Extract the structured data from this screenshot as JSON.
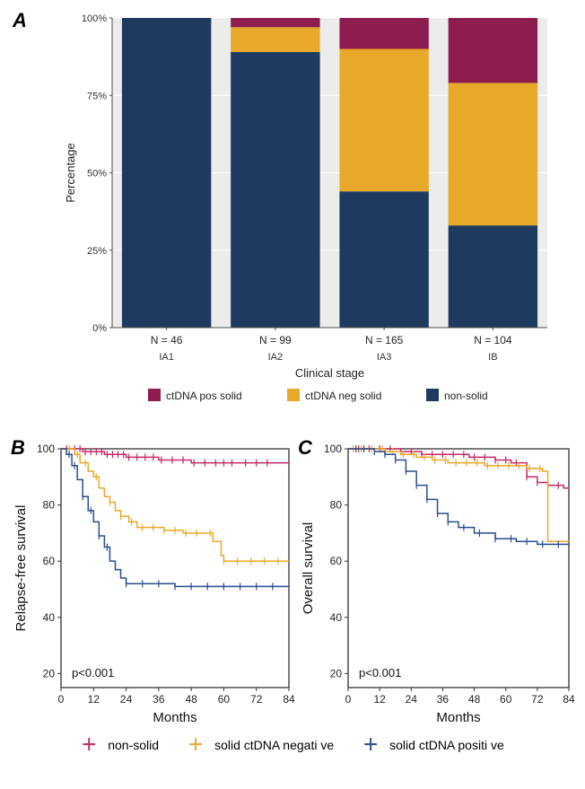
{
  "panels": {
    "A": "A",
    "B": "B",
    "C": "C"
  },
  "barChart": {
    "type": "stacked-bar",
    "xlabel": "Clinical stage",
    "ylabel": "Percentage",
    "yTicks": [
      0,
      25,
      50,
      75,
      100
    ],
    "yTickFormat": "percent",
    "categories": [
      "IA1",
      "IA2",
      "IA3",
      "IB"
    ],
    "nLabels": [
      "N = 46",
      "N = 99",
      "N = 165",
      "N = 104"
    ],
    "series": [
      {
        "key": "non_solid",
        "label": "non-solid",
        "color": "#1f3a5f"
      },
      {
        "key": "ctdna_neg_solid",
        "label": "ctDNA neg solid",
        "color": "#e8a92b"
      },
      {
        "key": "ctdna_pos_solid",
        "label": "ctDNA pos solid",
        "color": "#8e1d4f"
      }
    ],
    "legendOrder": [
      "ctdna_pos_solid",
      "ctdna_neg_solid",
      "non_solid"
    ],
    "data": {
      "IA1": {
        "non_solid": 100,
        "ctdna_neg_solid": 0,
        "ctdna_pos_solid": 0
      },
      "IA2": {
        "non_solid": 89,
        "ctdna_neg_solid": 8,
        "ctdna_pos_solid": 3
      },
      "IA3": {
        "non_solid": 44,
        "ctdna_neg_solid": 46,
        "ctdna_pos_solid": 10
      },
      "IB": {
        "non_solid": 33,
        "ctdna_neg_solid": 46,
        "ctdna_pos_solid": 21
      }
    },
    "barWidth": 0.82,
    "background": "#ececec",
    "gridColor": "#ffffff",
    "axisColor": "#4d4d4d",
    "labelFont": 13,
    "tickFont": 11,
    "nFont": 12
  },
  "kmLegend": {
    "items": [
      {
        "label": "non-solid",
        "color": "#c12a6b"
      },
      {
        "label": "solid ctDNA negati ve",
        "color": "#e8a92b"
      },
      {
        "label": "solid ctDNA positi ve",
        "color": "#2a4d8f"
      }
    ],
    "glyph": "＋"
  },
  "panelB": {
    "type": "kaplan-meier",
    "ylabel": "Relapse-free survival",
    "xlabel": "Months",
    "pText": "p<0.001",
    "xTicks": [
      0,
      12,
      24,
      36,
      48,
      60,
      72,
      84
    ],
    "yTicks": [
      20,
      40,
      60,
      80,
      100
    ],
    "ylim": [
      15,
      100
    ],
    "xlim": [
      0,
      84
    ],
    "background": "#ffffff",
    "axisColor": "#333333",
    "labelFont": 15,
    "tickFont": 12,
    "lineWidth": 1.5,
    "curves": [
      {
        "color": "#c12a6b",
        "steps": [
          [
            0,
            100
          ],
          [
            4,
            100
          ],
          [
            8,
            99
          ],
          [
            16,
            98
          ],
          [
            24,
            97
          ],
          [
            36,
            96
          ],
          [
            48,
            95
          ],
          [
            62,
            95
          ],
          [
            80,
            95
          ],
          [
            84,
            95
          ]
        ],
        "ticks": [
          2,
          5,
          7,
          9,
          11,
          13,
          15,
          17,
          19,
          21,
          23,
          25,
          28,
          31,
          34,
          37,
          41,
          45,
          49,
          53,
          57,
          60,
          63,
          68,
          72,
          76
        ]
      },
      {
        "color": "#e8a92b",
        "steps": [
          [
            0,
            100
          ],
          [
            3,
            100
          ],
          [
            5,
            98
          ],
          [
            7,
            95
          ],
          [
            10,
            92
          ],
          [
            12,
            90
          ],
          [
            14,
            86
          ],
          [
            16,
            83
          ],
          [
            18,
            81
          ],
          [
            20,
            78
          ],
          [
            22,
            76
          ],
          [
            25,
            74
          ],
          [
            28,
            72
          ],
          [
            33,
            72
          ],
          [
            38,
            71
          ],
          [
            45,
            70
          ],
          [
            52,
            70
          ],
          [
            56,
            67
          ],
          [
            59,
            62
          ],
          [
            60,
            60
          ],
          [
            70,
            60
          ],
          [
            80,
            60
          ],
          [
            84,
            60
          ]
        ],
        "ticks": [
          3,
          6,
          9,
          13,
          18,
          22,
          26,
          30,
          34,
          38,
          42,
          46,
          50,
          55,
          60,
          65,
          70,
          75,
          80
        ]
      },
      {
        "color": "#2a4d8f",
        "steps": [
          [
            0,
            100
          ],
          [
            2,
            98
          ],
          [
            4,
            94
          ],
          [
            6,
            89
          ],
          [
            8,
            83
          ],
          [
            10,
            78
          ],
          [
            12,
            74
          ],
          [
            14,
            69
          ],
          [
            16,
            65
          ],
          [
            18,
            60
          ],
          [
            20,
            57
          ],
          [
            22,
            54
          ],
          [
            24,
            52
          ],
          [
            28,
            52
          ],
          [
            34,
            52
          ],
          [
            42,
            51
          ],
          [
            52,
            51
          ],
          [
            62,
            51
          ],
          [
            72,
            51
          ],
          [
            84,
            51
          ]
        ],
        "ticks": [
          3,
          5,
          8,
          11,
          14,
          17,
          24,
          30,
          36,
          42,
          48,
          54,
          60,
          66,
          72,
          78
        ]
      }
    ]
  },
  "panelC": {
    "type": "kaplan-meier",
    "ylabel": "Overall survival",
    "xlabel": "Months",
    "pText": "p<0.001",
    "xTicks": [
      0,
      12,
      24,
      36,
      48,
      60,
      72,
      84
    ],
    "yTicks": [
      20,
      40,
      60,
      80,
      100
    ],
    "ylim": [
      15,
      100
    ],
    "xlim": [
      0,
      84
    ],
    "background": "#ffffff",
    "axisColor": "#333333",
    "labelFont": 15,
    "tickFont": 12,
    "lineWidth": 1.5,
    "curves": [
      {
        "color": "#c12a6b",
        "steps": [
          [
            0,
            100
          ],
          [
            10,
            100
          ],
          [
            20,
            99
          ],
          [
            28,
            98
          ],
          [
            36,
            98
          ],
          [
            46,
            97
          ],
          [
            56,
            96
          ],
          [
            62,
            95
          ],
          [
            68,
            90
          ],
          [
            72,
            88
          ],
          [
            76,
            87
          ],
          [
            82,
            86
          ],
          [
            84,
            86
          ]
        ],
        "ticks": [
          4,
          8,
          12,
          16,
          20,
          24,
          28,
          32,
          36,
          40,
          44,
          48,
          52,
          56,
          60,
          64,
          68,
          72,
          76,
          80
        ]
      },
      {
        "color": "#e8a92b",
        "steps": [
          [
            0,
            100
          ],
          [
            8,
            100
          ],
          [
            14,
            99
          ],
          [
            20,
            98
          ],
          [
            26,
            97
          ],
          [
            32,
            96
          ],
          [
            38,
            95
          ],
          [
            44,
            95
          ],
          [
            52,
            94
          ],
          [
            60,
            94
          ],
          [
            68,
            93
          ],
          [
            74,
            92
          ],
          [
            76,
            67
          ],
          [
            80,
            67
          ],
          [
            84,
            67
          ]
        ],
        "ticks": [
          2,
          5,
          9,
          13,
          17,
          21,
          25,
          29,
          33,
          37,
          41,
          45,
          49,
          53,
          57,
          61,
          65,
          69,
          73
        ]
      },
      {
        "color": "#2a4d8f",
        "steps": [
          [
            0,
            100
          ],
          [
            6,
            100
          ],
          [
            10,
            99
          ],
          [
            14,
            98
          ],
          [
            18,
            96
          ],
          [
            22,
            92
          ],
          [
            26,
            87
          ],
          [
            30,
            82
          ],
          [
            34,
            77
          ],
          [
            38,
            74
          ],
          [
            42,
            72
          ],
          [
            48,
            70
          ],
          [
            56,
            68
          ],
          [
            64,
            67
          ],
          [
            72,
            66
          ],
          [
            80,
            66
          ],
          [
            84,
            66
          ]
        ],
        "ticks": [
          3,
          6,
          10,
          14,
          18,
          22,
          26,
          30,
          34,
          38,
          44,
          50,
          56,
          62,
          68,
          74,
          80
        ]
      }
    ]
  }
}
